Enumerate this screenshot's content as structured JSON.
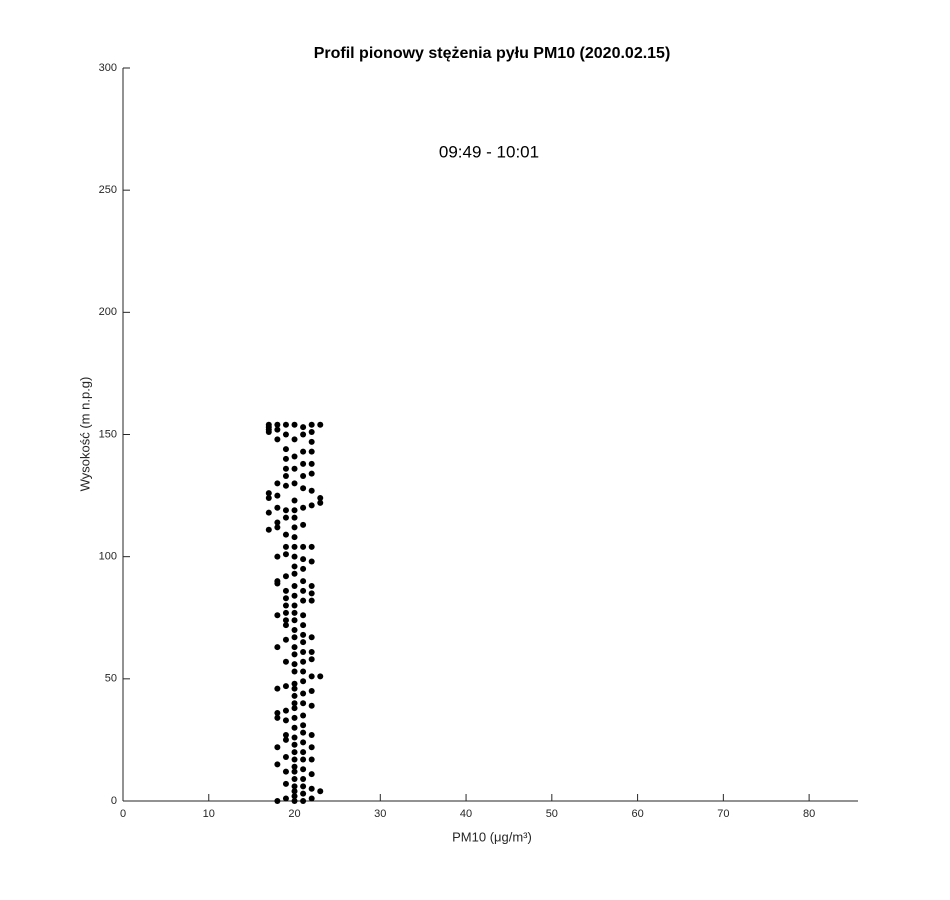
{
  "chart_data": {
    "type": "scatter",
    "title": "Profil pionowy stężenia pyłu PM10 (2020.02.15)",
    "annotation": "09:49 - 10:01",
    "x_label": "PM10 (μg/m³)",
    "y_label": "Wysokość (m n.p.g)",
    "color": "#000000",
    "xlim": [
      0,
      85.7
    ],
    "ylim": [
      0,
      300
    ],
    "xticks": [
      0,
      10,
      20,
      30,
      40,
      50,
      60,
      70,
      80
    ],
    "yticks": [
      0,
      50,
      100,
      150,
      200,
      250,
      300
    ],
    "x": [
      17,
      17,
      17,
      17,
      17,
      17,
      17,
      17,
      18,
      18,
      18,
      18,
      18,
      18,
      18,
      18,
      18,
      18,
      18,
      18,
      18,
      18,
      18,
      18,
      18,
      18,
      18,
      19,
      19,
      19,
      19,
      19,
      19,
      19,
      19,
      19,
      19,
      19,
      19,
      19,
      19,
      19,
      19,
      19,
      19,
      19,
      19,
      19,
      19,
      19,
      19,
      19,
      19,
      19,
      19,
      19,
      19,
      20,
      20,
      20,
      20,
      20,
      20,
      20,
      20,
      20,
      20,
      20,
      20,
      20,
      20,
      20,
      20,
      20,
      20,
      20,
      20,
      20,
      20,
      20,
      20,
      20,
      20,
      20,
      20,
      20,
      20,
      20,
      20,
      20,
      20,
      20,
      20,
      20,
      20,
      20,
      20,
      20,
      20,
      20,
      21,
      21,
      21,
      21,
      21,
      21,
      21,
      21,
      21,
      21,
      21,
      21,
      21,
      21,
      21,
      21,
      21,
      21,
      21,
      21,
      21,
      21,
      21,
      21,
      21,
      21,
      21,
      21,
      21,
      21,
      21,
      21,
      21,
      21,
      21,
      22,
      22,
      22,
      22,
      22,
      22,
      22,
      22,
      22,
      22,
      22,
      22,
      22,
      22,
      22,
      22,
      22,
      22,
      22,
      22,
      22,
      22,
      22,
      22,
      22,
      23,
      23,
      23,
      23,
      23
    ],
    "values": [
      111,
      118,
      124,
      126,
      151,
      152,
      153,
      154,
      0,
      15,
      22,
      34,
      36,
      46,
      63,
      76,
      89,
      90,
      100,
      112,
      114,
      120,
      125,
      130,
      148,
      152,
      154,
      1,
      7,
      12,
      18,
      25,
      27,
      33,
      37,
      47,
      57,
      66,
      72,
      74,
      77,
      80,
      83,
      86,
      92,
      101,
      104,
      109,
      116,
      119,
      129,
      133,
      136,
      140,
      144,
      150,
      154,
      0,
      2,
      4,
      6,
      9,
      12,
      14,
      17,
      20,
      23,
      26,
      30,
      34,
      38,
      40,
      43,
      46,
      48,
      53,
      56,
      60,
      63,
      67,
      70,
      74,
      77,
      80,
      84,
      88,
      93,
      96,
      100,
      104,
      108,
      112,
      116,
      119,
      123,
      130,
      136,
      141,
      148,
      154,
      0,
      3,
      6,
      9,
      13,
      17,
      20,
      24,
      28,
      31,
      35,
      40,
      44,
      49,
      53,
      57,
      61,
      65,
      68,
      72,
      76,
      82,
      86,
      90,
      95,
      99,
      104,
      113,
      120,
      128,
      133,
      138,
      143,
      150,
      153,
      1,
      5,
      11,
      17,
      22,
      27,
      39,
      45,
      51,
      58,
      61,
      67,
      82,
      85,
      88,
      98,
      104,
      121,
      127,
      134,
      138,
      143,
      147,
      151,
      154,
      4,
      51,
      122,
      124,
      154
    ]
  }
}
